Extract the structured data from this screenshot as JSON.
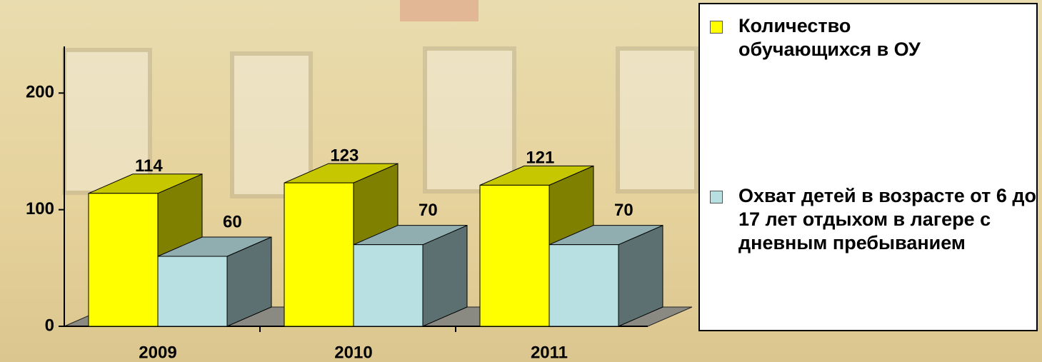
{
  "chart_data": {
    "type": "bar3d",
    "categories": [
      "2009",
      "2010",
      "2011"
    ],
    "series": [
      {
        "name": "Количество обучающихся в ОУ",
        "color": "#ffff00",
        "values": [
          114,
          123,
          121
        ]
      },
      {
        "name": "Охват детей в возрасте от 6 до 17 лет отдыхом в лагере с дневным пребыванием",
        "color": "#b8dfe2",
        "values": [
          60,
          70,
          70
        ]
      }
    ],
    "ylim": [
      0,
      240
    ],
    "yticks": [
      0,
      100,
      200
    ],
    "legend": "right"
  }
}
